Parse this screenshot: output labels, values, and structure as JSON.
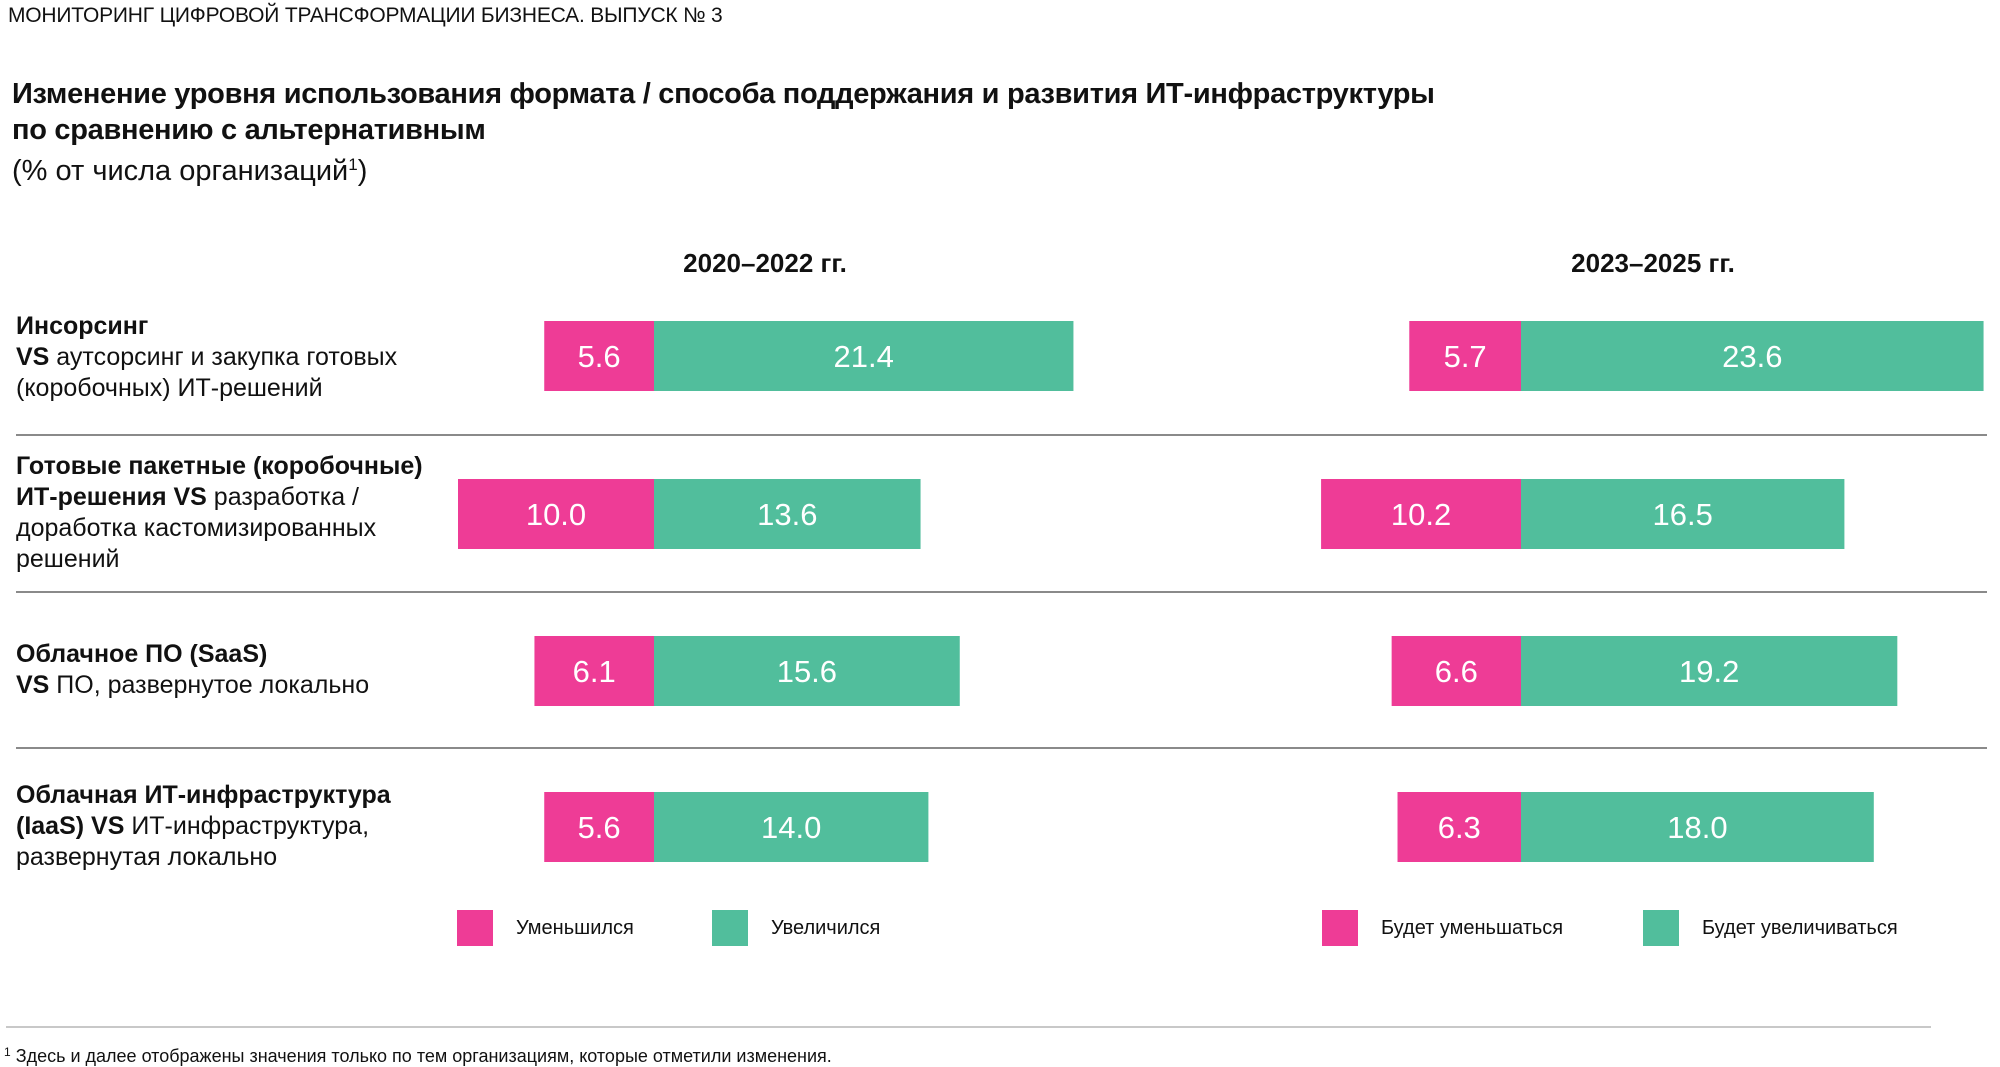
{
  "header": "МОНИТОРИНГ ЦИФРОВОЙ ТРАНСФОРМАЦИИ БИЗНЕСА. ВЫПУСК № 3",
  "colors": {
    "decrease": "#EE3C96",
    "increase": "#51BE9C"
  },
  "footnote": {
    "mark": "1",
    "text": "Здесь и далее отображены значения только по тем организациям, которые отметили изменения."
  },
  "chart_data": {
    "type": "bar",
    "subtype": "diverging-stacked-horizontal",
    "title_line1": "Изменение уровня использования формата / способа поддержания и развития ИТ-инфраструктуры",
    "title_line2": "по сравнению с альтернативным",
    "subtitle": "(% от числа организаций",
    "subtitle_mark": "1",
    "subtitle_close": ")",
    "panels": [
      {
        "label": "2020–2022 гг.",
        "legend": [
          "Уменьшился",
          "Увеличился"
        ],
        "decrease": [
          5.6,
          10.0,
          6.1,
          5.6
        ],
        "increase": [
          21.4,
          13.6,
          15.6,
          14.0
        ],
        "decrease_labels": [
          "5.6",
          "10.0",
          "6.1",
          "5.6"
        ],
        "increase_labels": [
          "21.4",
          "13.6",
          "15.6",
          "14.0"
        ]
      },
      {
        "label": "2023–2025 гг.",
        "legend": [
          "Будет уменьшаться",
          "Будет увеличиваться"
        ],
        "decrease": [
          5.7,
          10.2,
          6.6,
          6.3
        ],
        "increase": [
          23.6,
          16.5,
          19.2,
          18.0
        ],
        "decrease_labels": [
          "5.7",
          "10.2",
          "6.6",
          "6.3"
        ],
        "increase_labels": [
          "23.6",
          "16.5",
          "19.2",
          "18.0"
        ]
      }
    ],
    "categories": [
      {
        "bold": "Инсорсинг",
        "line2_bold": "VS",
        "line2": " аутсорсинг и закупка готовых",
        "line3": "(коробочных) ИТ-решений"
      },
      {
        "bold": "Готовые пакетные (коробочные)",
        "line2_bold": "ИТ-решения VS",
        "line2": " разработка /",
        "line3": "доработка кастомизированных",
        "line4": "решений"
      },
      {
        "bold": "Облачное ПО (SaaS)",
        "line2_bold": "VS",
        "line2": " ПО, развернутое локально"
      },
      {
        "bold": "Облачная ИТ-инфраструктура",
        "line2_bold": "(IaaS) VS",
        "line2": " ИТ-инфраструктура,",
        "line3": "развернутая локально"
      }
    ]
  }
}
